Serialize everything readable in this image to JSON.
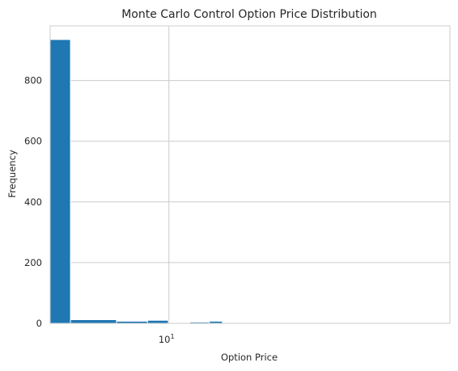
{
  "chart_data": {
    "type": "bar",
    "title": "Monte Carlo Control Option Price Distribution",
    "xlabel": "Option Price",
    "ylabel": "Frequency",
    "x_scale": "log",
    "xlim": [
      5.4,
      43
    ],
    "ylim": [
      0,
      980
    ],
    "grid": true,
    "bar_color": "#1f77b4",
    "grid_color": "#cccccc",
    "y_ticks": [
      0,
      200,
      400,
      600,
      800
    ],
    "y_tick_labels": [
      "0",
      "200",
      "400",
      "600",
      "800"
    ],
    "x_ticks": [
      10
    ],
    "x_tick_labels": [
      {
        "base": "10",
        "exp": "1"
      }
    ],
    "bins": [
      {
        "start": 5.4,
        "end": 6.0,
        "value": 935
      },
      {
        "start": 6.0,
        "end": 7.62,
        "value": 12
      },
      {
        "start": 7.62,
        "end": 8.95,
        "value": 7
      },
      {
        "start": 8.95,
        "end": 9.97,
        "value": 10
      },
      {
        "start": 9.97,
        "end": 11.15,
        "value": 0
      },
      {
        "start": 11.15,
        "end": 12.33,
        "value": 4
      },
      {
        "start": 12.33,
        "end": 13.2,
        "value": 7
      },
      {
        "start": 13.2,
        "end": 43,
        "value": 0
      }
    ]
  }
}
